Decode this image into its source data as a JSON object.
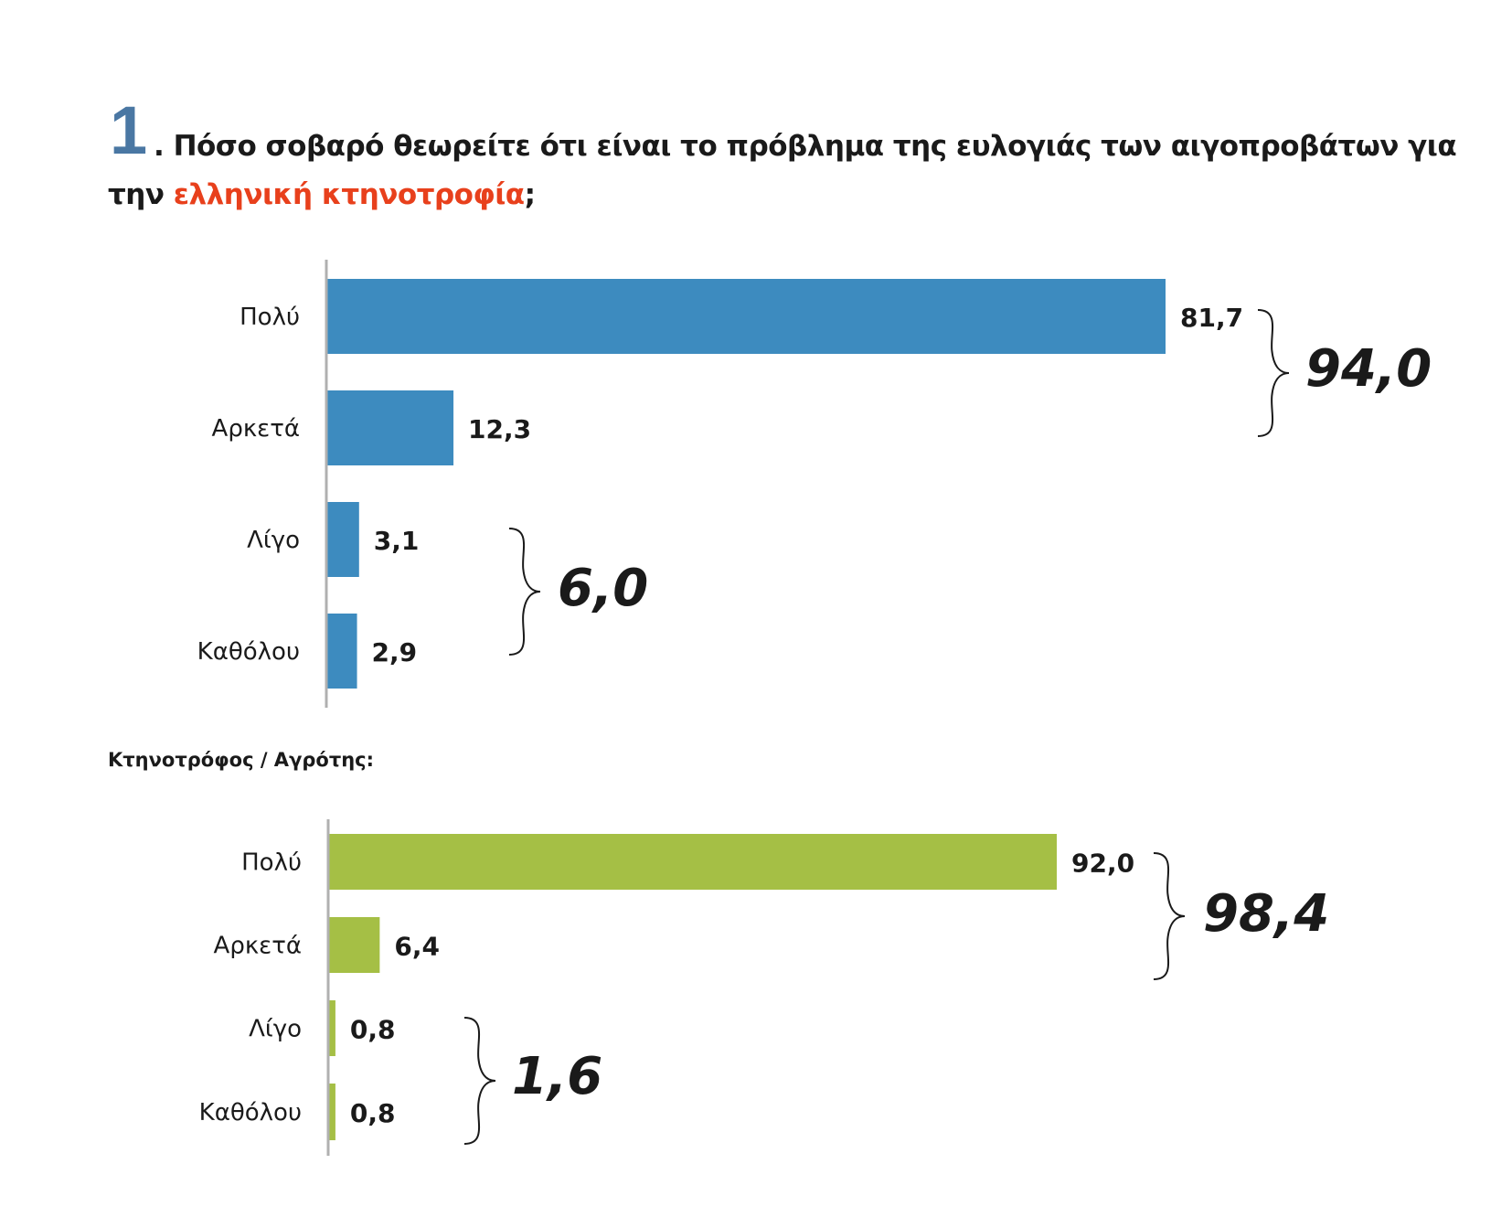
{
  "title": {
    "number": "1",
    "text_main": ". Πόσο σοβαρό θεωρείτε ότι είναι το πρόβλημα της ευλογιάς των αιγοπροβάτων για",
    "text_line2_start": "την ",
    "text_highlight": "ελληνική κτηνοτροφία",
    "text_end": ";",
    "highlight_color": "#e8401c",
    "number_color": "#4a77a3"
  },
  "chart_data": [
    {
      "type": "bar",
      "orientation": "horizontal",
      "title": "",
      "categories": [
        "Πολύ",
        "Αρκετά",
        "Λίγο",
        "Καθόλου"
      ],
      "values": [
        81.7,
        12.3,
        3.1,
        2.9
      ],
      "value_labels": [
        "81,7",
        "12,3",
        "3,1",
        "2,9"
      ],
      "color": "#3d8bbf",
      "groups": [
        {
          "members": [
            "Πολύ",
            "Αρκετά"
          ],
          "total": 94.0,
          "label": "94,0"
        },
        {
          "members": [
            "Λίγο",
            "Καθόλου"
          ],
          "total": 6.0,
          "label": "6,0"
        }
      ],
      "xlim": [
        0,
        100
      ]
    },
    {
      "type": "bar",
      "orientation": "horizontal",
      "title": "Κτηνοτρόφος / Αγρότης:",
      "categories": [
        "Πολύ",
        "Αρκετά",
        "Λίγο",
        "Καθόλου"
      ],
      "values": [
        92.0,
        6.4,
        0.8,
        0.8
      ],
      "value_labels": [
        "92,0",
        "6,4",
        "0,8",
        "0,8"
      ],
      "color": "#a5bf45",
      "groups": [
        {
          "members": [
            "Πολύ",
            "Αρκετά"
          ],
          "total": 98.4,
          "label": "98,4"
        },
        {
          "members": [
            "Λίγο",
            "Καθόλου"
          ],
          "total": 1.6,
          "label": "1,6"
        }
      ],
      "xlim": [
        0,
        100
      ]
    }
  ]
}
